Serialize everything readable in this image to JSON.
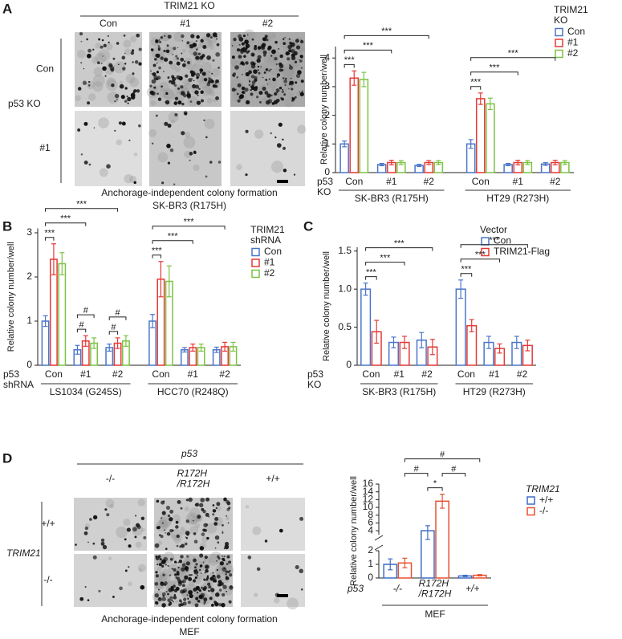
{
  "figure": {
    "panels": [
      "A",
      "B",
      "C",
      "D"
    ],
    "image_panels": [
      {
        "header": "TRIM21 KO",
        "columns": [
          "Con",
          "#1",
          "#2"
        ],
        "row_header": "p53 KO",
        "rows": [
          "Con",
          "#1"
        ],
        "caption": "Anchorage-independent colony formation",
        "subcaption": "SK-BR3 (R175H)"
      },
      {
        "header": "p53",
        "columns": [
          "-/-",
          "R172H /R172H",
          "+/+"
        ],
        "row_header": "TRIM21",
        "rows": [
          "+/+",
          "-/-"
        ],
        "caption": "Anchorage-independent colony formation",
        "subcaption": "MEF"
      }
    ]
  },
  "chart_data": [
    {
      "type": "bar",
      "y_label": "Relative colony number/well",
      "x_row_label": "p53 KO",
      "legend_title": "TRIM21 KO",
      "groups": [
        {
          "name": "SK-BR3 (R175H)",
          "categories": [
            "Con",
            "#1",
            "#2"
          ]
        },
        {
          "name": "HT29 (R273H)",
          "categories": [
            "Con",
            "#1",
            "#2"
          ]
        }
      ],
      "series": [
        {
          "name": "Con",
          "color": "#4a76c9",
          "values": [
            1.0,
            0.28,
            0.25,
            1.0,
            0.28,
            0.3
          ],
          "errors": [
            0.1,
            0.04,
            0.04,
            0.15,
            0.04,
            0.05
          ]
        },
        {
          "name": "#1",
          "color": "#e53935",
          "values": [
            3.3,
            0.35,
            0.35,
            2.58,
            0.35,
            0.35
          ],
          "errors": [
            0.25,
            0.08,
            0.07,
            0.2,
            0.08,
            0.08
          ]
        },
        {
          "name": "#2",
          "color": "#7cc242",
          "values": [
            3.25,
            0.35,
            0.35,
            2.4,
            0.35,
            0.35
          ],
          "errors": [
            0.25,
            0.07,
            0.07,
            0.2,
            0.07,
            0.07
          ]
        }
      ],
      "ylim": [
        0,
        4.4
      ],
      "yticks": [
        0,
        1,
        2,
        3,
        4
      ],
      "significance": [
        {
          "label": "***",
          "from": [
            0,
            0
          ],
          "to": [
            1,
            0
          ]
        },
        {
          "label": "***",
          "from": [
            0,
            0
          ],
          "to": [
            1,
            1
          ]
        },
        {
          "label": "***",
          "from": [
            0,
            0
          ],
          "to": [
            1,
            2
          ]
        },
        {
          "label": "***",
          "from": [
            0,
            3
          ],
          "to": [
            1,
            3
          ]
        },
        {
          "label": "***",
          "from": [
            0,
            3
          ],
          "to": [
            1,
            4
          ]
        },
        {
          "label": "***",
          "from": [
            0,
            3
          ],
          "to": [
            1,
            5
          ]
        }
      ]
    },
    {
      "type": "bar",
      "y_label": "Relative colony number/well",
      "x_row_label": "p53 shRNA",
      "legend_title": "TRIM21 shRNA",
      "groups": [
        {
          "name": "LS1034 (G245S)",
          "categories": [
            "Con",
            "#1",
            "#2"
          ]
        },
        {
          "name": "HCC70 (R248Q)",
          "categories": [
            "Con",
            "#1",
            "#2"
          ]
        }
      ],
      "series": [
        {
          "name": "Con",
          "color": "#4a76c9",
          "values": [
            1.0,
            0.35,
            0.4,
            1.0,
            0.35,
            0.35
          ],
          "errors": [
            0.12,
            0.1,
            0.08,
            0.15,
            0.05,
            0.06
          ]
        },
        {
          "name": "#1",
          "color": "#e53935",
          "values": [
            2.4,
            0.55,
            0.5,
            1.95,
            0.4,
            0.42
          ],
          "errors": [
            0.35,
            0.12,
            0.12,
            0.4,
            0.08,
            0.1
          ]
        },
        {
          "name": "#2",
          "color": "#7cc242",
          "values": [
            2.3,
            0.5,
            0.55,
            1.9,
            0.4,
            0.42
          ],
          "errors": [
            0.25,
            0.12,
            0.12,
            0.35,
            0.08,
            0.1
          ]
        }
      ],
      "ylim": [
        0,
        3.1
      ],
      "yticks": [
        0,
        1,
        2,
        3
      ],
      "significance": [
        {
          "label": "***",
          "from": [
            0,
            0
          ],
          "to": [
            1,
            0
          ]
        },
        {
          "label": "***",
          "from": [
            0,
            0
          ],
          "to": [
            1,
            1
          ]
        },
        {
          "label": "***",
          "from": [
            0,
            0
          ],
          "to": [
            1,
            2
          ]
        },
        {
          "label": "#",
          "from": [
            0,
            1
          ],
          "to": [
            1,
            1
          ]
        },
        {
          "label": "#",
          "from": [
            0,
            1
          ],
          "to": [
            2,
            1
          ]
        },
        {
          "label": "#",
          "from": [
            0,
            2
          ],
          "to": [
            1,
            2
          ]
        },
        {
          "label": "#",
          "from": [
            0,
            2
          ],
          "to": [
            2,
            2
          ]
        },
        {
          "label": "***",
          "from": [
            0,
            3
          ],
          "to": [
            1,
            3
          ]
        },
        {
          "label": "***",
          "from": [
            0,
            3
          ],
          "to": [
            1,
            4
          ]
        },
        {
          "label": "***",
          "from": [
            0,
            3
          ],
          "to": [
            1,
            5
          ]
        }
      ]
    },
    {
      "type": "bar",
      "y_label": "Relative colony number/well",
      "x_row_label": "p53 KO",
      "legend_title": "Vector",
      "groups": [
        {
          "name": "SK-BR3 (R175H)",
          "categories": [
            "Con",
            "#1",
            "#2"
          ]
        },
        {
          "name": "HT29 (R273H)",
          "categories": [
            "Con",
            "#1",
            "#2"
          ]
        }
      ],
      "series": [
        {
          "name": "Con",
          "color": "#4a76c9",
          "values": [
            1.0,
            0.3,
            0.33,
            1.0,
            0.3,
            0.3
          ],
          "errors": [
            0.08,
            0.07,
            0.1,
            0.12,
            0.08,
            0.08
          ]
        },
        {
          "name": "TRIM21-Flag",
          "color": "#e53935",
          "values": [
            0.44,
            0.3,
            0.24,
            0.52,
            0.22,
            0.26
          ],
          "errors": [
            0.15,
            0.08,
            0.1,
            0.08,
            0.06,
            0.07
          ]
        }
      ],
      "ylim": [
        0,
        1.55
      ],
      "yticks": [
        0,
        0.5,
        {
          "value": 1,
          "label": "1.0"
        },
        1.5
      ],
      "significance": [
        {
          "label": "***",
          "from": [
            0,
            0
          ],
          "to": [
            1,
            0
          ]
        },
        {
          "label": "***",
          "from": [
            0,
            0
          ],
          "to": [
            1,
            1
          ]
        },
        {
          "label": "***",
          "from": [
            0,
            0
          ],
          "to": [
            1,
            2
          ]
        },
        {
          "label": "***",
          "from": [
            0,
            3
          ],
          "to": [
            1,
            3
          ]
        },
        {
          "label": "***",
          "from": [
            0,
            3
          ],
          "to": [
            1,
            4
          ]
        },
        {
          "label": "***",
          "from": [
            0,
            3
          ],
          "to": [
            1,
            5
          ]
        }
      ]
    },
    {
      "type": "bar",
      "y_label": "Relative colony number/well",
      "x_row_label": "p53",
      "legend_title": "TRIM21",
      "groups": [
        {
          "name": "MEF",
          "categories": [
            "-/-",
            "R172H /R172H",
            "+/+"
          ]
        }
      ],
      "series": [
        {
          "name": "+/+",
          "color": "#3d6cc7",
          "values": [
            1.0,
            4.0,
            0.15
          ],
          "errors": [
            0.4,
            1.3,
            0.05
          ]
        },
        {
          "name": "-/-",
          "color": "#e8502f",
          "values": [
            1.1,
            11.6,
            0.2
          ],
          "errors": [
            0.35,
            1.8,
            0.05
          ]
        }
      ],
      "ylim": [
        0,
        16
      ],
      "y_break": [
        2,
        3
      ],
      "yticks": [
        0,
        1,
        2,
        4,
        6,
        8,
        10,
        12,
        14,
        16
      ],
      "significance": [
        {
          "label": "#",
          "from": [
            1,
            0
          ],
          "to": [
            0,
            1
          ]
        },
        {
          "label": "*",
          "from": [
            0,
            1
          ],
          "to": [
            1,
            1
          ]
        },
        {
          "label": "#",
          "from": [
            1,
            1
          ],
          "to": [
            0,
            2
          ]
        },
        {
          "label": "#",
          "from": [
            1,
            0
          ],
          "to": [
            1,
            2
          ]
        }
      ]
    }
  ]
}
